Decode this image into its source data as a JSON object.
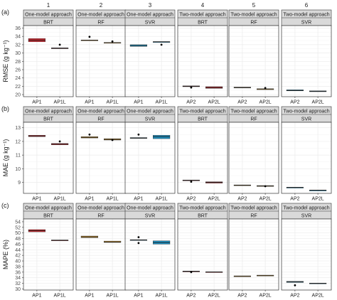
{
  "column_numbers": [
    "1",
    "2",
    "3",
    "4",
    "5",
    "6"
  ],
  "panel_headers": [
    {
      "approach": "One-model approach",
      "model": "BRT"
    },
    {
      "approach": "One-model approach",
      "model": "RF"
    },
    {
      "approach": "One-model approach",
      "model": "SVR"
    },
    {
      "approach": "Two-model approach",
      "model": "BRT"
    },
    {
      "approach": "Two-model approach",
      "model": "RF"
    },
    {
      "approach": "Two-model approach",
      "model": "SVR"
    }
  ],
  "colors": {
    "BRT": "#c8282f",
    "RF": "#c8902a",
    "SVR": "#1f8fbf",
    "header_bg": "#d9d9d9",
    "grid": "#ebebeb"
  },
  "chart_data": [
    {
      "type": "box",
      "row_tag": "(a)",
      "ylabel": "RMSE (g kg⁻¹)",
      "ylim": [
        19.5,
        36.6
      ],
      "yticks": [
        20,
        22,
        24,
        26,
        28,
        30,
        32,
        34,
        36
      ],
      "tick_labels": [
        "20",
        "22",
        "24",
        "26",
        "28",
        "30",
        "32",
        "34",
        "36"
      ],
      "panels": [
        {
          "model": "BRT",
          "categories": [
            "AP1",
            "AP1L"
          ],
          "boxes": [
            {
              "q1": 32.7,
              "median": 33.1,
              "q3": 33.5,
              "outliers": []
            },
            {
              "q1": 31.05,
              "median": 31.15,
              "q3": 31.25,
              "outliers": [
                32.0
              ]
            }
          ]
        },
        {
          "model": "RF",
          "categories": [
            "AP1",
            "AP1L"
          ],
          "boxes": [
            {
              "q1": 33.05,
              "median": 33.1,
              "q3": 33.15,
              "outliers": [
                33.9
              ]
            },
            {
              "q1": 32.45,
              "median": 32.5,
              "q3": 32.55,
              "outliers": [
                32.8
              ]
            }
          ]
        },
        {
          "model": "SVR",
          "categories": [
            "AP1",
            "AP1L"
          ],
          "boxes": [
            {
              "q1": 31.6,
              "median": 31.8,
              "q3": 32.0,
              "outliers": []
            },
            {
              "q1": 32.65,
              "median": 32.7,
              "q3": 32.75,
              "outliers": [
                32.0
              ]
            }
          ]
        },
        {
          "model": "BRT",
          "categories": [
            "AP2",
            "AP2L"
          ],
          "boxes": [
            {
              "q1": 21.9,
              "median": 22.0,
              "q3": 22.1,
              "outliers": [
                21.7
              ]
            },
            {
              "q1": 21.5,
              "median": 21.7,
              "q3": 21.9,
              "outliers": []
            }
          ]
        },
        {
          "model": "RF",
          "categories": [
            "AP2",
            "AP2L"
          ],
          "boxes": [
            {
              "q1": 21.6,
              "median": 21.7,
              "q3": 21.8,
              "outliers": []
            },
            {
              "q1": 21.3,
              "median": 21.35,
              "q3": 21.4,
              "outliers": [
                21.6
              ]
            }
          ]
        },
        {
          "model": "SVR",
          "categories": [
            "AP2",
            "AP2L"
          ],
          "boxes": [
            {
              "q1": 20.9,
              "median": 21.0,
              "q3": 21.15,
              "outliers": []
            },
            {
              "q1": 20.7,
              "median": 20.8,
              "q3": 20.9,
              "outliers": []
            }
          ]
        }
      ]
    },
    {
      "type": "box",
      "row_tag": "(b)",
      "ylabel": "MAE (g kg⁻¹)",
      "ylim": [
        8.2,
        13.4
      ],
      "yticks": [
        9,
        10,
        11,
        12,
        13
      ],
      "tick_labels": [
        "9",
        "10",
        "11",
        "12",
        "13"
      ],
      "panels": [
        {
          "model": "BRT",
          "categories": [
            "AP1",
            "AP1L"
          ],
          "boxes": [
            {
              "q1": 12.35,
              "median": 12.4,
              "q3": 12.45,
              "outliers": []
            },
            {
              "q1": 11.75,
              "median": 11.8,
              "q3": 11.85,
              "outliers": [
                12.0
              ]
            }
          ]
        },
        {
          "model": "RF",
          "categories": [
            "AP1",
            "AP1L"
          ],
          "boxes": [
            {
              "q1": 12.25,
              "median": 12.3,
              "q3": 12.35,
              "outliers": [
                12.5
              ]
            },
            {
              "q1": 12.1,
              "median": 12.15,
              "q3": 12.2,
              "outliers": [
                12.1
              ]
            }
          ]
        },
        {
          "model": "SVR",
          "categories": [
            "AP1",
            "AP1L"
          ],
          "boxes": [
            {
              "q1": 12.22,
              "median": 12.25,
              "q3": 12.28,
              "outliers": [
                12.5
              ]
            },
            {
              "q1": 12.2,
              "median": 12.35,
              "q3": 12.45,
              "outliers": []
            }
          ]
        },
        {
          "model": "BRT",
          "categories": [
            "AP2",
            "AP2L"
          ],
          "boxes": [
            {
              "q1": 9.12,
              "median": 9.15,
              "q3": 9.18,
              "outliers": [
                9.05
              ]
            },
            {
              "q1": 8.95,
              "median": 9.0,
              "q3": 9.05,
              "outliers": []
            }
          ]
        },
        {
          "model": "RF",
          "categories": [
            "AP2",
            "AP2L"
          ],
          "boxes": [
            {
              "q1": 8.78,
              "median": 8.8,
              "q3": 8.82,
              "outliers": []
            },
            {
              "q1": 8.73,
              "median": 8.75,
              "q3": 8.77,
              "outliers": [
                8.72
              ]
            }
          ]
        },
        {
          "model": "SVR",
          "categories": [
            "AP2",
            "AP2L"
          ],
          "boxes": [
            {
              "q1": 8.61,
              "median": 8.63,
              "q3": 8.65,
              "outliers": []
            },
            {
              "q1": 8.42,
              "median": 8.43,
              "q3": 8.44,
              "outliers": []
            }
          ]
        }
      ]
    },
    {
      "type": "box",
      "row_tag": "(c)",
      "ylabel": "MAPE (%)",
      "ylim": [
        29.6,
        55.0
      ],
      "yticks": [
        30,
        32,
        34,
        36,
        38,
        40,
        42,
        44,
        46,
        48,
        50,
        52,
        54
      ],
      "tick_labels": [
        "30",
        "32",
        "34",
        "36",
        "38",
        "40",
        "42",
        "44",
        "46",
        "48",
        "50",
        "52",
        "54"
      ],
      "panels": [
        {
          "model": "BRT",
          "categories": [
            "AP1",
            "AP1L"
          ],
          "boxes": [
            {
              "q1": 50.4,
              "median": 50.8,
              "q3": 51.2,
              "outliers": []
            },
            {
              "q1": 47.3,
              "median": 47.4,
              "q3": 47.5,
              "outliers": []
            }
          ]
        },
        {
          "model": "RF",
          "categories": [
            "AP1",
            "AP1L"
          ],
          "boxes": [
            {
              "q1": 48.3,
              "median": 48.6,
              "q3": 48.9,
              "outliers": []
            },
            {
              "q1": 46.6,
              "median": 46.8,
              "q3": 47.1,
              "outliers": []
            }
          ]
        },
        {
          "model": "SVR",
          "categories": [
            "AP1",
            "AP1L"
          ],
          "boxes": [
            {
              "q1": 47.3,
              "median": 47.5,
              "q3": 47.6,
              "outliers": [
                48.5,
                46.4
              ]
            },
            {
              "q1": 46.0,
              "median": 46.6,
              "q3": 47.2,
              "outliers": []
            }
          ]
        },
        {
          "model": "BRT",
          "categories": [
            "AP2",
            "AP2L"
          ],
          "boxes": [
            {
              "q1": 36.2,
              "median": 36.3,
              "q3": 36.4,
              "outliers": [
                36.0
              ]
            },
            {
              "q1": 35.95,
              "median": 36.05,
              "q3": 36.15,
              "outliers": []
            }
          ]
        },
        {
          "model": "RF",
          "categories": [
            "AP2",
            "AP2L"
          ],
          "boxes": [
            {
              "q1": 34.55,
              "median": 34.6,
              "q3": 34.65,
              "outliers": []
            },
            {
              "q1": 34.8,
              "median": 34.85,
              "q3": 34.9,
              "outliers": []
            }
          ]
        },
        {
          "model": "SVR",
          "categories": [
            "AP2",
            "AP2L"
          ],
          "boxes": [
            {
              "q1": 32.3,
              "median": 32.5,
              "q3": 32.7,
              "outliers": [
                31.3
              ]
            },
            {
              "q1": 31.9,
              "median": 32.0,
              "q3": 32.1,
              "outliers": []
            }
          ]
        }
      ]
    }
  ]
}
